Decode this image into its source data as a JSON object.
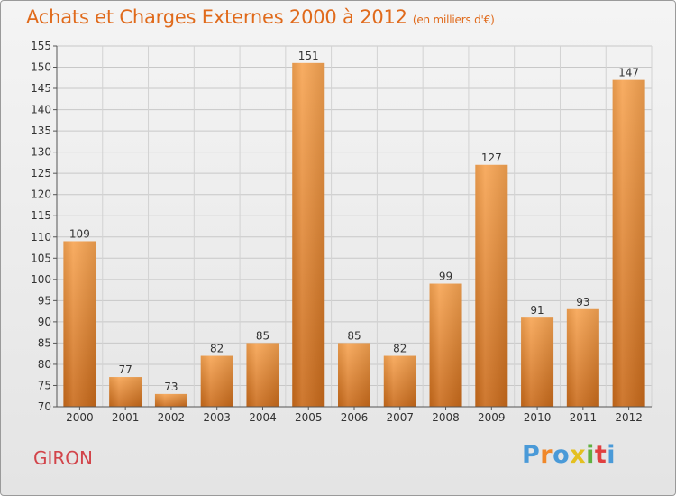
{
  "chart_data": {
    "type": "bar",
    "title": "Achats et Charges Externes 2000 à 2012",
    "subtitle": "(en milliers d'€)",
    "categories": [
      "2000",
      "2001",
      "2002",
      "2003",
      "2004",
      "2005",
      "2006",
      "2007",
      "2008",
      "2009",
      "2010",
      "2011",
      "2012"
    ],
    "values": [
      109,
      77,
      73,
      82,
      85,
      151,
      85,
      82,
      99,
      127,
      91,
      93,
      147
    ],
    "ylim": [
      70,
      155
    ],
    "yticks": [
      70,
      75,
      80,
      85,
      90,
      95,
      100,
      105,
      110,
      115,
      120,
      125,
      130,
      135,
      140,
      145,
      150,
      155
    ],
    "grid": true,
    "bar_color_top": "#f7a452",
    "bar_color_bottom": "#c96a1a"
  },
  "footer": {
    "commune": "GIRON",
    "logo_text": "Proxiti",
    "logo_colors": [
      "#4a9ad8",
      "#f0882a",
      "#4a9ad8",
      "#e4c020",
      "#60b040",
      "#e04040",
      "#4a9ad8"
    ]
  }
}
